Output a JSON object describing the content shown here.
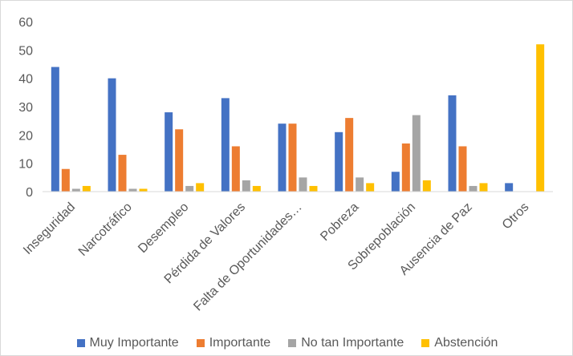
{
  "chart_data": {
    "type": "bar",
    "categories": [
      "Inseguridad",
      "Narcotráfico",
      "Desempleo",
      "Pérdida de Valores",
      "Falta de Oportunidades…",
      "Pobreza",
      "Sobrepoblación",
      "Ausencia de Paz",
      "Otros"
    ],
    "series": [
      {
        "name": "Muy Importante",
        "color": "#4472c4",
        "values": [
          44,
          40,
          28,
          33,
          24,
          21,
          7,
          34,
          3
        ]
      },
      {
        "name": "Importante",
        "color": "#ed7d31",
        "values": [
          8,
          13,
          22,
          16,
          24,
          26,
          17,
          16,
          0
        ]
      },
      {
        "name": "No tan Importante",
        "color": "#a5a5a5",
        "values": [
          1,
          1,
          2,
          4,
          5,
          5,
          27,
          2,
          0
        ]
      },
      {
        "name": "Abstención",
        "color": "#ffc000",
        "values": [
          2,
          1,
          3,
          2,
          2,
          3,
          4,
          3,
          52
        ]
      }
    ],
    "yticks": [
      "0",
      "10",
      "20",
      "30",
      "40",
      "50",
      "60"
    ],
    "ylim": [
      0,
      60
    ],
    "grid": false,
    "legend_position": "bottom"
  }
}
